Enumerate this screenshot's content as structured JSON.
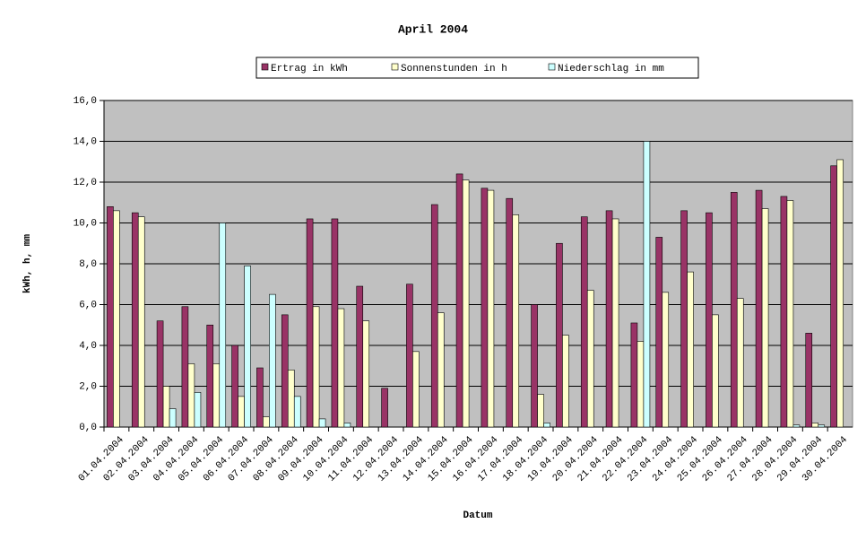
{
  "chart_data": {
    "type": "bar",
    "title": "April 2004",
    "x_label": "Datum",
    "y_label": "kWh, h, mm",
    "categories": [
      "01.04.2004",
      "02.04.2004",
      "03.04.2004",
      "04.04.2004",
      "05.04.2004",
      "06.04.2004",
      "07.04.2004",
      "08.04.2004",
      "09.04.2004",
      "10.04.2004",
      "11.04.2004",
      "12.04.2004",
      "13.04.2004",
      "14.04.2004",
      "15.04.2004",
      "16.04.2004",
      "17.04.2004",
      "18.04.2004",
      "19.04.2004",
      "20.04.2004",
      "21.04.2004",
      "22.04.2004",
      "23.04.2004",
      "24.04.2004",
      "25.04.2004",
      "26.04.2004",
      "27.04.2004",
      "28.04.2004",
      "29.04.2004",
      "30.04.2004"
    ],
    "series": [
      {
        "name": "Ertrag in kWh",
        "color": "#993366",
        "values": [
          10.8,
          10.5,
          5.2,
          5.9,
          5.0,
          4.0,
          2.9,
          5.5,
          10.2,
          10.2,
          6.9,
          1.9,
          7.0,
          10.9,
          12.4,
          11.7,
          11.2,
          6.0,
          9.0,
          10.3,
          10.6,
          5.1,
          9.3,
          10.6,
          10.5,
          11.5,
          11.6,
          11.3,
          4.6,
          12.8
        ]
      },
      {
        "name": "Sonnenstunden in h",
        "color": "#ffffcc",
        "values": [
          10.6,
          10.3,
          2.0,
          3.1,
          3.1,
          1.5,
          0.5,
          2.8,
          5.9,
          5.8,
          5.2,
          0,
          3.7,
          5.6,
          12.1,
          11.6,
          10.4,
          1.6,
          4.5,
          6.7,
          10.2,
          4.2,
          6.6,
          7.6,
          5.5,
          6.3,
          10.7,
          11.1,
          0.2,
          13.1
        ]
      },
      {
        "name": "Niederschlag in mm",
        "color": "#ccffff",
        "values": [
          0,
          0,
          0.9,
          1.7,
          10.0,
          7.9,
          6.5,
          1.5,
          0.4,
          0.2,
          0,
          0,
          0,
          0,
          0,
          0,
          0,
          0.2,
          0,
          0,
          0,
          14.0,
          0,
          0,
          0,
          0,
          0,
          0.1,
          0.1,
          0
        ]
      }
    ],
    "ylim": [
      0,
      16
    ],
    "yticks": [
      {
        "value": 0,
        "label": "0,0"
      },
      {
        "value": 2,
        "label": "2,0"
      },
      {
        "value": 4,
        "label": "4,0"
      },
      {
        "value": 6,
        "label": "6,0"
      },
      {
        "value": 8,
        "label": "8,0"
      },
      {
        "value": 10,
        "label": "10,0"
      },
      {
        "value": 12,
        "label": "12,0"
      },
      {
        "value": 14,
        "label": "14,0"
      },
      {
        "value": 16,
        "label": "16,0"
      }
    ],
    "grid": true,
    "plot_background": "#c0c0c0",
    "legend": "top"
  }
}
